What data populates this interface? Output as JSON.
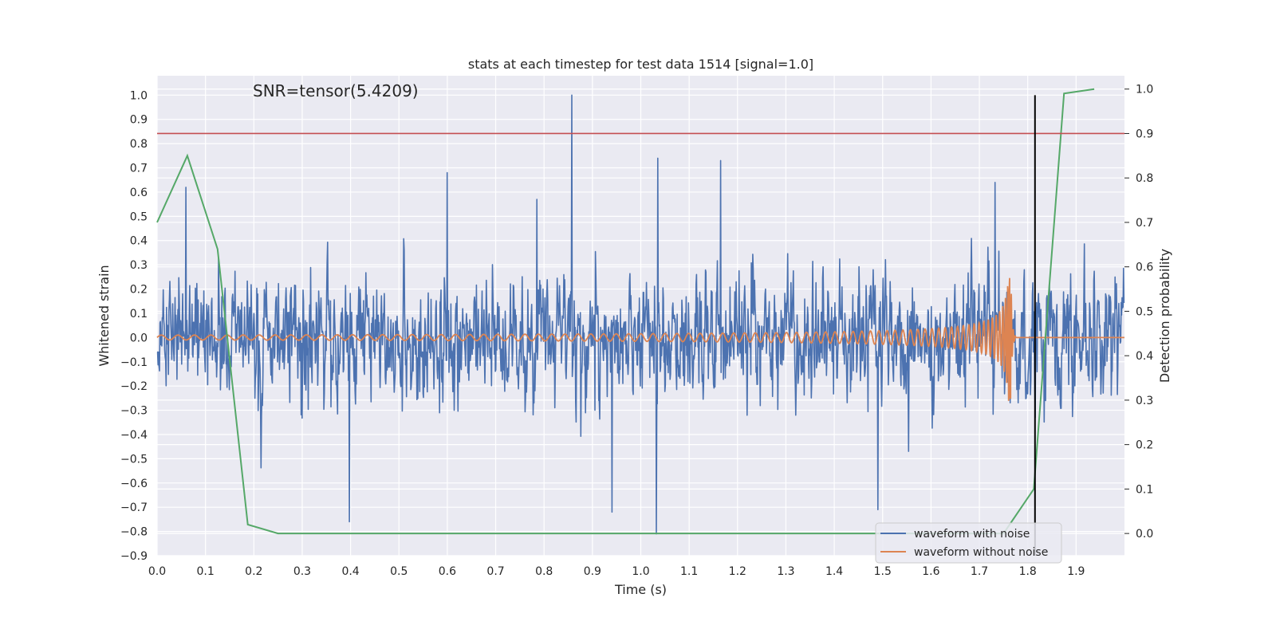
{
  "chart_data": {
    "type": "line",
    "title": "stats at each timestep for test data 1514 [signal=1.0]",
    "annotation": "SNR=tensor(5.4209)",
    "xlabel": "Time (s)",
    "ylabel": "Whitened strain",
    "y2label": "Detection probability",
    "xlim": [
      0.0,
      2.0
    ],
    "ylim": [
      -0.9,
      1.08
    ],
    "y2lim": [
      -0.05,
      1.03
    ],
    "xticks": [
      "0.0",
      "0.1",
      "0.2",
      "0.3",
      "0.4",
      "0.5",
      "0.6",
      "0.7",
      "0.8",
      "0.9",
      "1.0",
      "1.1",
      "1.2",
      "1.3",
      "1.4",
      "1.5",
      "1.6",
      "1.7",
      "1.8",
      "1.9"
    ],
    "yticks": [
      "1.0",
      "0.9",
      "0.8",
      "0.7",
      "0.6",
      "0.5",
      "0.4",
      "0.3",
      "0.2",
      "0.1",
      "0.0",
      "−0.1",
      "−0.2",
      "−0.3",
      "−0.4",
      "−0.5",
      "−0.6",
      "−0.7",
      "−0.8",
      "−0.9"
    ],
    "y2ticks": [
      "1.0",
      "0.9",
      "0.8",
      "0.7",
      "0.6",
      "0.5",
      "0.4",
      "0.3",
      "0.2",
      "0.1",
      "0.0"
    ],
    "legend_position": "lower-right",
    "threshold": {
      "axis": "y2",
      "value": 0.9,
      "color": "#c44e52"
    },
    "vline": {
      "x": 1.815,
      "y_from": -0.9,
      "y_to": 1.0,
      "color": "#000000"
    },
    "series": [
      {
        "name": "waveform with noise",
        "axis": "y",
        "color": "#4c72b0",
        "generator": {
          "points": 2048,
          "std": 0.2,
          "peak_max": 1.0,
          "peak_min": -0.81,
          "seed": 1514
        }
      },
      {
        "name": "waveform without noise",
        "axis": "y",
        "color": "#dd8452",
        "generator": {
          "kind": "chirp",
          "t_merge": 1.765,
          "amp_start": 0.01,
          "amp_peak": 0.27
        }
      },
      {
        "name": "",
        "axis": "y2",
        "color": "#55a868",
        "x": [
          0.0,
          0.0625,
          0.125,
          0.1875,
          0.25,
          0.3125,
          0.375,
          0.4375,
          0.5,
          0.5625,
          0.625,
          0.6875,
          0.75,
          0.8125,
          0.875,
          0.9375,
          1.0,
          1.0625,
          1.125,
          1.1875,
          1.25,
          1.3125,
          1.375,
          1.4375,
          1.5,
          1.5625,
          1.625,
          1.6875,
          1.75,
          1.8125,
          1.875,
          1.9375
        ],
        "values": [
          0.7,
          0.85,
          0.64,
          0.02,
          0.0,
          0.0,
          0.0,
          0.0,
          0.0,
          0.0,
          0.0,
          0.0,
          0.0,
          0.0,
          0.0,
          0.0,
          0.0,
          0.0,
          0.0,
          0.0,
          0.0,
          0.0,
          0.0,
          0.0,
          0.0,
          0.0,
          0.0,
          0.0,
          0.0,
          0.1,
          0.99,
          1.0
        ]
      }
    ],
    "colors": {
      "background": "#eaeaf2",
      "grid": "#ffffff",
      "text": "#262626",
      "legend_bg": "#eaeaf2",
      "legend_border": "#cccccc"
    }
  }
}
